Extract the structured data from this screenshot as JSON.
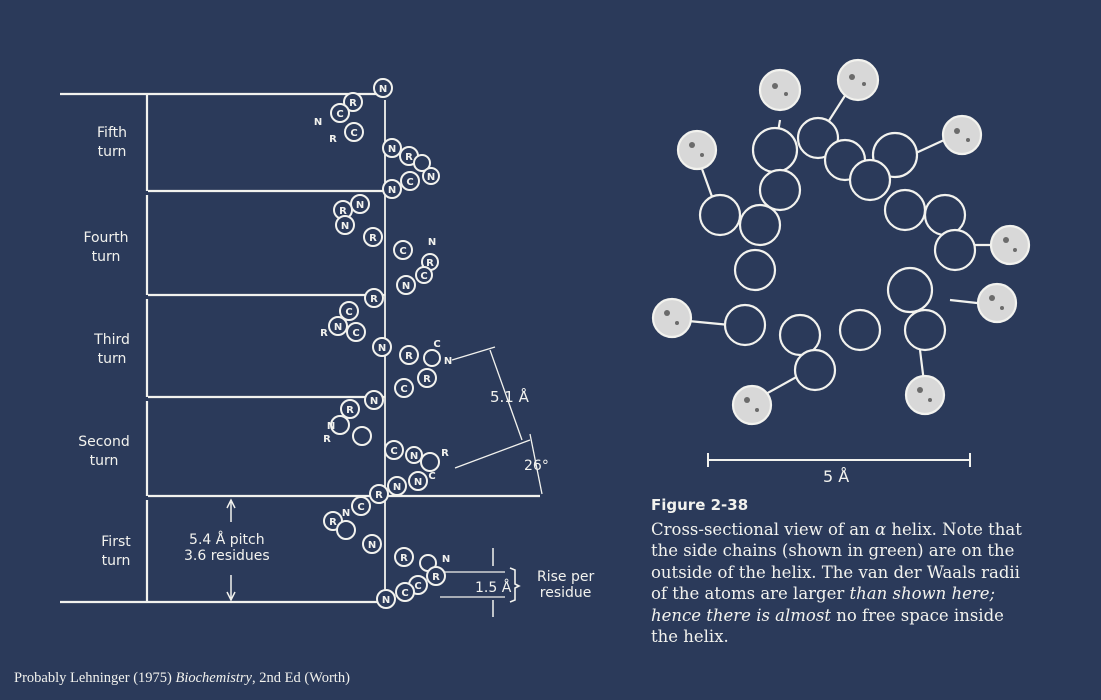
{
  "turns": [
    {
      "line1": "Fifth",
      "line2": "turn"
    },
    {
      "line1": "Fourth",
      "line2": "turn"
    },
    {
      "line1": "Third",
      "line2": "turn"
    },
    {
      "line1": "Second",
      "line2": "turn"
    },
    {
      "line1": "First",
      "line2": "turn"
    }
  ],
  "pitch": {
    "line1": "5.4 Å pitch",
    "line2": "3.6 residues"
  },
  "rise": {
    "value": "1.5 Å",
    "label1": "Rise per",
    "label2": "residue"
  },
  "dimension": {
    "distance": "5.1 Å",
    "angle": "26°"
  },
  "atoms": {
    "nitrogen": "N",
    "carbon": "C",
    "side_chain": "R"
  },
  "scale": {
    "label": "5 Å"
  },
  "figure": {
    "number": "Figure 2-38",
    "caption_pre": "Cross-sectional view of an ",
    "caption_alpha": "α",
    "caption_mid": " helix. Note that the side chains (shown in green) are on the outside of the helix. The van der Waals radii of the atoms are larger ",
    "caption_italic": "than shown here; hence there is almost",
    "caption_post": " no free space inside the helix."
  },
  "source": {
    "pre": "Probably Lehninger (1975) ",
    "title": "Biochemistry",
    "post": ", 2nd Ed (Worth)"
  }
}
